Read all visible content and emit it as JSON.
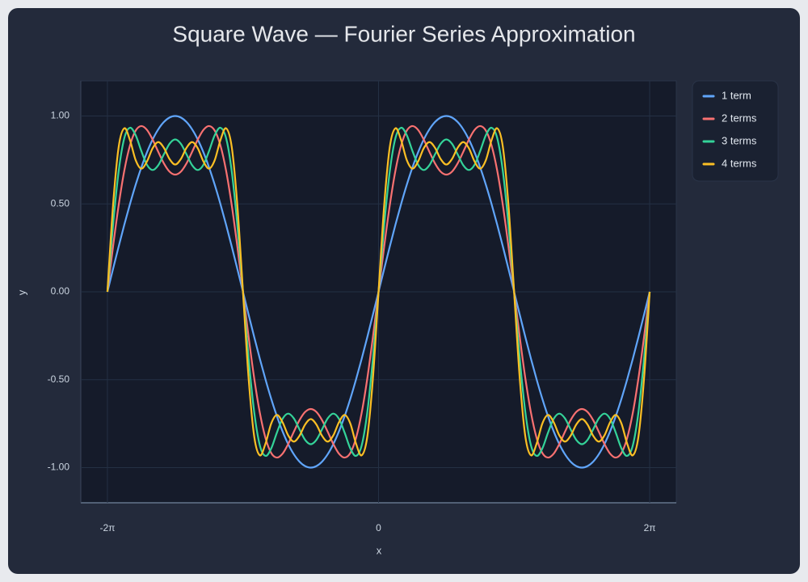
{
  "chart_data": {
    "type": "line",
    "title": "Square Wave — Fourier Series Approximation",
    "xlabel": "x",
    "ylabel": "y",
    "x": [
      -6.2832,
      -6.1523,
      -6.0214,
      -5.8905,
      -5.7596,
      -5.6287,
      -5.4978,
      -5.3669,
      -5.236,
      -5.1051,
      -4.9742,
      -4.8433,
      -4.7124,
      -4.5815,
      -4.4506,
      -4.3197,
      -4.1888,
      -4.0579,
      -3.927,
      -3.7961,
      -3.6652,
      -3.5343,
      -3.4034,
      -3.2725,
      -3.1416,
      -3.0107,
      -2.8798,
      -2.7489,
      -2.618,
      -2.4871,
      -2.3562,
      -2.2253,
      -2.0944,
      -1.9635,
      -1.8326,
      -1.7017,
      -1.5708,
      -1.4399,
      -1.309,
      -1.1781,
      -1.0472,
      -0.9163,
      -0.7854,
      -0.6545,
      -0.5236,
      -0.3927,
      -0.2618,
      -0.1309,
      0,
      0.1309,
      0.2618,
      0.3927,
      0.5236,
      0.6545,
      0.7854,
      0.9163,
      1.0472,
      1.1781,
      1.309,
      1.4399,
      1.5708,
      1.7017,
      1.8326,
      1.9635,
      2.0944,
      2.2253,
      2.3562,
      2.4871,
      2.618,
      2.7489,
      2.8798,
      3.0107,
      3.1416,
      3.2725,
      3.4034,
      3.5343,
      3.6652,
      3.7961,
      3.927,
      4.0579,
      4.1888,
      4.3197,
      4.4506,
      4.5815,
      4.7124,
      4.8433,
      4.9742,
      5.1051,
      5.236,
      5.3669,
      5.4978,
      5.6287,
      5.7596,
      5.8905,
      6.0214,
      6.1523,
      6.2832
    ],
    "series": [
      {
        "name": "1 term",
        "color": "#60a5fa",
        "values": [
          0,
          0.1305,
          0.2588,
          0.3827,
          0.5,
          0.6088,
          0.7071,
          0.7934,
          0.866,
          0.9239,
          0.9659,
          0.9914,
          1,
          0.9914,
          0.9659,
          0.9239,
          0.866,
          0.7934,
          0.7071,
          0.6088,
          0.5,
          0.3827,
          0.2588,
          0.1305,
          0,
          -0.1305,
          -0.2588,
          -0.3827,
          -0.5,
          -0.6088,
          -0.7071,
          -0.7934,
          -0.866,
          -0.9239,
          -0.9659,
          -0.9914,
          -1,
          -0.9914,
          -0.9659,
          -0.9239,
          -0.866,
          -0.7934,
          -0.7071,
          -0.6088,
          -0.5,
          -0.3827,
          -0.2588,
          -0.1305,
          0,
          0.1305,
          0.2588,
          0.3827,
          0.5,
          0.6088,
          0.7071,
          0.7934,
          0.866,
          0.9239,
          0.9659,
          0.9914,
          1,
          0.9914,
          0.9659,
          0.9239,
          0.866,
          0.7934,
          0.7071,
          0.6088,
          0.5,
          0.3827,
          0.2588,
          0.1305,
          0,
          -0.1305,
          -0.2588,
          -0.3827,
          -0.5,
          -0.6088,
          -0.7071,
          -0.7934,
          -0.866,
          -0.9239,
          -0.9659,
          -0.9914,
          -1,
          -0.9914,
          -0.9659,
          -0.9239,
          -0.866,
          -0.7934,
          -0.7071,
          -0.6088,
          -0.5,
          -0.3827,
          -0.2588,
          -0.1305,
          0
        ]
      },
      {
        "name": "2 terms",
        "color": "#f87171",
        "values": [
          0,
          0.2581,
          0.4945,
          0.6907,
          0.8333,
          0.9168,
          0.9428,
          0.921,
          0.866,
          0.7963,
          0.7302,
          0.6834,
          0.6667,
          0.6834,
          0.7302,
          0.7963,
          0.866,
          0.921,
          0.9428,
          0.9168,
          0.8333,
          0.6907,
          0.4945,
          0.2581,
          0,
          -0.2581,
          -0.4945,
          -0.6907,
          -0.8333,
          -0.9168,
          -0.9428,
          -0.921,
          -0.866,
          -0.7963,
          -0.7302,
          -0.6834,
          -0.6667,
          -0.6834,
          -0.7302,
          -0.7963,
          -0.866,
          -0.921,
          -0.9428,
          -0.9168,
          -0.8333,
          -0.6907,
          -0.4945,
          -0.2581,
          0,
          0.2581,
          0.4945,
          0.6907,
          0.8333,
          0.9168,
          0.9428,
          0.921,
          0.866,
          0.7963,
          0.7302,
          0.6834,
          0.6667,
          0.6834,
          0.7302,
          0.7963,
          0.866,
          0.921,
          0.9428,
          0.9168,
          0.8333,
          0.6907,
          0.4945,
          0.2581,
          0,
          -0.2581,
          -0.4945,
          -0.6907,
          -0.8333,
          -0.9168,
          -0.9428,
          -0.921,
          -0.866,
          -0.7963,
          -0.7302,
          -0.6834,
          -0.6667,
          -0.6834,
          -0.7302,
          -0.7963,
          -0.866,
          -0.921,
          -0.9428,
          -0.9168,
          -0.8333,
          -0.6907,
          -0.4945,
          -0.2581,
          0
        ]
      },
      {
        "name": "3 terms",
        "color": "#34d399",
        "values": [
          0,
          0.3799,
          0.6877,
          0.8755,
          0.9333,
          0.8907,
          0.8014,
          0.7227,
          0.6928,
          0.7198,
          0.782,
          0.8421,
          0.8667,
          0.8421,
          0.782,
          0.7198,
          0.6928,
          0.7227,
          0.8014,
          0.8907,
          0.9333,
          0.8755,
          0.6877,
          0.3799,
          0,
          -0.3799,
          -0.6877,
          -0.8755,
          -0.9333,
          -0.8907,
          -0.8014,
          -0.7227,
          -0.6928,
          -0.7198,
          -0.782,
          -0.8421,
          -0.8667,
          -0.8421,
          -0.782,
          -0.7198,
          -0.6928,
          -0.7227,
          -0.8014,
          -0.8907,
          -0.9333,
          -0.8755,
          -0.6877,
          -0.3799,
          0,
          0.3799,
          0.6877,
          0.8755,
          0.9333,
          0.8907,
          0.8014,
          0.7227,
          0.6928,
          0.7198,
          0.782,
          0.8421,
          0.8667,
          0.8421,
          0.782,
          0.7198,
          0.6928,
          0.7227,
          0.8014,
          0.8907,
          0.9333,
          0.8755,
          0.6877,
          0.3799,
          0,
          -0.3799,
          -0.6877,
          -0.8755,
          -0.9333,
          -0.8907,
          -0.8014,
          -0.7227,
          -0.6928,
          -0.7198,
          -0.782,
          -0.8421,
          -0.8667,
          -0.8421,
          -0.782,
          -0.7198,
          -0.6928,
          -0.7227,
          -0.8014,
          -0.8907,
          -0.9333,
          -0.8755,
          -0.6877,
          -0.3799,
          0
        ]
      },
      {
        "name": "4 terms",
        "color": "#fbbf24",
        "values": [
          0,
          0.4932,
          0.8257,
          0.9302,
          0.8619,
          0.7491,
          0.7004,
          0.7413,
          0.8165,
          0.8518,
          0.819,
          0.7551,
          0.7238,
          0.7551,
          0.819,
          0.8518,
          0.8165,
          0.7413,
          0.7004,
          0.7491,
          0.8619,
          0.9302,
          0.8257,
          0.4932,
          0,
          -0.4932,
          -0.8257,
          -0.9302,
          -0.8619,
          -0.7491,
          -0.7004,
          -0.7413,
          -0.8165,
          -0.8518,
          -0.819,
          -0.7551,
          -0.7238,
          -0.7551,
          -0.819,
          -0.8518,
          -0.8165,
          -0.7413,
          -0.7004,
          -0.7491,
          -0.8619,
          -0.9302,
          -0.8257,
          -0.4932,
          0,
          0.4932,
          0.8257,
          0.9302,
          0.8619,
          0.7491,
          0.7004,
          0.7413,
          0.8165,
          0.8518,
          0.819,
          0.7551,
          0.7238,
          0.7551,
          0.819,
          0.8518,
          0.8165,
          0.7413,
          0.7004,
          0.7491,
          0.8619,
          0.9302,
          0.8257,
          0.4932,
          0,
          -0.4932,
          -0.8257,
          -0.9302,
          -0.8619,
          -0.7491,
          -0.7004,
          -0.7413,
          -0.8165,
          -0.8518,
          -0.819,
          -0.7551,
          -0.7238,
          -0.7551,
          -0.819,
          -0.8518,
          -0.8165,
          -0.7413,
          -0.7004,
          -0.7491,
          -0.8619,
          -0.9302,
          -0.8257,
          -0.4932,
          0
        ]
      }
    ],
    "xlim": [
      -6.9,
      6.9
    ],
    "xticks": [
      {
        "value": -6.2832,
        "label": "-2π"
      },
      0,
      {
        "value": 6.2832,
        "label": "2π"
      }
    ],
    "ylim": [
      -1.2,
      1.2
    ],
    "yticks": [
      {
        "value": -1,
        "label": "-1.00"
      },
      {
        "value": -0.5,
        "label": "-0.50"
      },
      {
        "value": 0,
        "label": "0.00"
      },
      {
        "value": 0.5,
        "label": "0.50"
      },
      {
        "value": 1,
        "label": "1.00"
      }
    ],
    "grid": true,
    "legend": "right"
  }
}
